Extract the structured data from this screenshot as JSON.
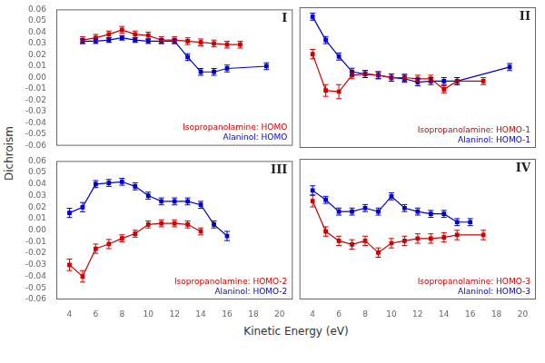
{
  "xlabel": "Kinetic Energy (eV)",
  "ylabel": "Dichroism",
  "chart_data": [
    {
      "type": "line",
      "title": "I",
      "grid": false,
      "legend": "lower right",
      "tick_labels": "y",
      "xlim": [
        3,
        21
      ],
      "xticks": [
        4,
        6,
        8,
        10,
        12,
        14,
        16,
        18,
        20
      ],
      "ylim": [
        -0.06,
        0.06
      ],
      "yticks": [
        -0.06,
        -0.05,
        -0.04,
        -0.03,
        -0.02,
        -0.01,
        {
          "value": 0,
          "label": "0.00"
        },
        0.01,
        0.02,
        0.03,
        0.04,
        0.05,
        0.06
      ],
      "series": [
        {
          "name": "Isopropanolamine: HOMO",
          "color": "#cc0000",
          "marker": "square",
          "line_style": "solid",
          "x": [
            5,
            6,
            7,
            8,
            9,
            10,
            11,
            12,
            13,
            14,
            15,
            16,
            17
          ],
          "values": [
            0.033,
            0.035,
            0.038,
            0.042,
            0.038,
            0.037,
            0.033,
            0.033,
            0.032,
            0.031,
            0.03,
            0.029,
            0.029
          ],
          "errors": [
            0.003,
            0.003,
            0.003,
            0.003,
            0.003,
            0.003,
            0.003,
            0.003,
            0.003,
            0.003,
            0.003,
            0.003,
            0.003
          ]
        },
        {
          "name": "Alaninol: HOMO",
          "color": "#0000cc",
          "marker": "square",
          "line_style": "solid",
          "x": [
            5,
            6,
            7,
            8,
            9,
            10,
            11,
            12,
            13,
            14,
            15,
            16,
            19
          ],
          "values": [
            0.032,
            0.032,
            0.033,
            0.035,
            0.033,
            0.032,
            0.032,
            0.032,
            0.018,
            0.005,
            0.005,
            0.008,
            0.01
          ],
          "errors": [
            0.002,
            0.002,
            0.002,
            0.002,
            0.002,
            0.002,
            0.002,
            0.002,
            0.003,
            0.003,
            0.003,
            0.003,
            0.003
          ]
        }
      ]
    },
    {
      "type": "line",
      "title": "II",
      "grid": false,
      "legend": "lower right",
      "tick_labels": false,
      "xlim": [
        3,
        21
      ],
      "xticks": [
        4,
        6,
        8,
        10,
        12,
        14,
        16,
        18,
        20
      ],
      "ylim": [
        -0.06,
        0.06
      ],
      "yticks": [
        -0.06,
        -0.05,
        -0.04,
        -0.03,
        -0.02,
        -0.01,
        {
          "value": 0,
          "label": "0.00"
        },
        0.01,
        0.02,
        0.03,
        0.04,
        0.05,
        0.06
      ],
      "series": [
        {
          "name": "Isopropanolamine: HOMO-1",
          "color": "#cc0000",
          "marker": "square",
          "line_style": "solid",
          "x": [
            4,
            5,
            6,
            7,
            8,
            9,
            10,
            11,
            12,
            13,
            14,
            15,
            17
          ],
          "values": [
            0.02,
            -0.011,
            -0.012,
            0.002,
            0.003,
            0.002,
            0.0,
            0.0,
            -0.001,
            -0.001,
            -0.01,
            -0.003,
            -0.003
          ],
          "errors": [
            0.004,
            0.005,
            0.006,
            0.003,
            0.003,
            0.003,
            0.003,
            0.003,
            0.003,
            0.003,
            0.003,
            0.003,
            0.003
          ]
        },
        {
          "name": "Alaninol: HOMO-1",
          "color": "#0000cc",
          "marker": "square",
          "line_style": "solid",
          "x": [
            4,
            5,
            6,
            7,
            8,
            9,
            10,
            11,
            12,
            13,
            14,
            15,
            19
          ],
          "values": [
            0.052,
            0.032,
            0.018,
            0.005,
            0.003,
            0.002,
            0.0,
            -0.001,
            -0.004,
            -0.003,
            -0.003,
            -0.003,
            0.009
          ],
          "errors": [
            0.003,
            0.003,
            0.003,
            0.003,
            0.003,
            0.003,
            0.003,
            0.003,
            0.003,
            0.003,
            0.003,
            0.003,
            0.003
          ]
        }
      ]
    },
    {
      "type": "line",
      "title": "III",
      "grid": false,
      "legend": "lower right",
      "xlim": [
        3,
        21
      ],
      "xticks": [
        4,
        6,
        8,
        10,
        12,
        14,
        16,
        18,
        20
      ],
      "ylim": [
        -0.06,
        0.06
      ],
      "yticks": [
        -0.06,
        -0.05,
        -0.04,
        -0.03,
        -0.02,
        -0.01,
        {
          "value": 0,
          "label": "0.00"
        },
        0.01,
        0.02,
        0.03,
        0.04,
        0.05,
        0.06
      ],
      "series": [
        {
          "name": "Isopropanolamine: HOMO-2",
          "color": "#cc0000",
          "marker": "square",
          "line_style": "solid",
          "x": [
            4,
            5,
            6,
            7,
            8,
            9,
            10,
            11,
            12,
            13,
            14
          ],
          "values": [
            -0.03,
            -0.04,
            -0.016,
            -0.012,
            -0.007,
            -0.003,
            0.005,
            0.006,
            0.006,
            0.005,
            -0.001
          ],
          "errors": [
            0.005,
            0.005,
            0.004,
            0.004,
            0.003,
            0.003,
            0.003,
            0.003,
            0.003,
            0.003,
            0.003
          ]
        },
        {
          "name": "Alaninol: HOMO-2",
          "color": "#0000cc",
          "marker": "square",
          "line_style": "solid",
          "x": [
            4,
            5,
            6,
            7,
            8,
            9,
            10,
            11,
            12,
            13,
            14,
            15,
            16
          ],
          "values": [
            0.015,
            0.02,
            0.04,
            0.041,
            0.042,
            0.038,
            0.03,
            0.025,
            0.025,
            0.025,
            0.022,
            0.005,
            -0.005
          ],
          "errors": [
            0.004,
            0.004,
            0.003,
            0.003,
            0.003,
            0.003,
            0.003,
            0.003,
            0.003,
            0.003,
            0.003,
            0.003,
            0.004
          ]
        }
      ]
    },
    {
      "type": "line",
      "title": "IV",
      "grid": false,
      "legend": "lower right",
      "tick_labels": "x",
      "xlim": [
        3,
        21
      ],
      "xticks": [
        4,
        6,
        8,
        10,
        12,
        14,
        16,
        18,
        20
      ],
      "ylim": [
        -0.06,
        0.06
      ],
      "yticks": [
        -0.06,
        -0.05,
        -0.04,
        -0.03,
        -0.02,
        -0.01,
        {
          "value": 0,
          "label": "0.00"
        },
        0.01,
        0.02,
        0.03,
        0.04,
        0.05,
        0.06
      ],
      "series": [
        {
          "name": "Isopropanolamine: HOMO-3",
          "color": "#cc0000",
          "marker": "square",
          "line_style": "solid",
          "x": [
            4,
            5,
            6,
            7,
            8,
            9,
            10,
            11,
            12,
            13,
            14,
            15,
            17
          ],
          "values": [
            0.024,
            -0.002,
            -0.01,
            -0.013,
            -0.01,
            -0.02,
            -0.012,
            -0.01,
            -0.008,
            -0.008,
            -0.007,
            -0.005,
            -0.005
          ],
          "errors": [
            0.005,
            0.004,
            0.004,
            0.004,
            0.004,
            0.004,
            0.004,
            0.004,
            0.004,
            0.004,
            0.004,
            0.004,
            0.004
          ]
        },
        {
          "name": "Alaninol: HOMO-3",
          "color": "#0000cc",
          "marker": "square",
          "line_style": "solid",
          "x": [
            4,
            5,
            6,
            7,
            8,
            9,
            10,
            11,
            12,
            13,
            14,
            15,
            16
          ],
          "values": [
            0.033,
            0.025,
            0.015,
            0.015,
            0.018,
            0.015,
            0.028,
            0.018,
            0.015,
            0.013,
            0.013,
            0.006,
            0.006
          ],
          "errors": [
            0.004,
            0.003,
            0.003,
            0.003,
            0.003,
            0.003,
            0.003,
            0.003,
            0.003,
            0.003,
            0.003,
            0.003,
            0.003
          ]
        }
      ]
    }
  ]
}
